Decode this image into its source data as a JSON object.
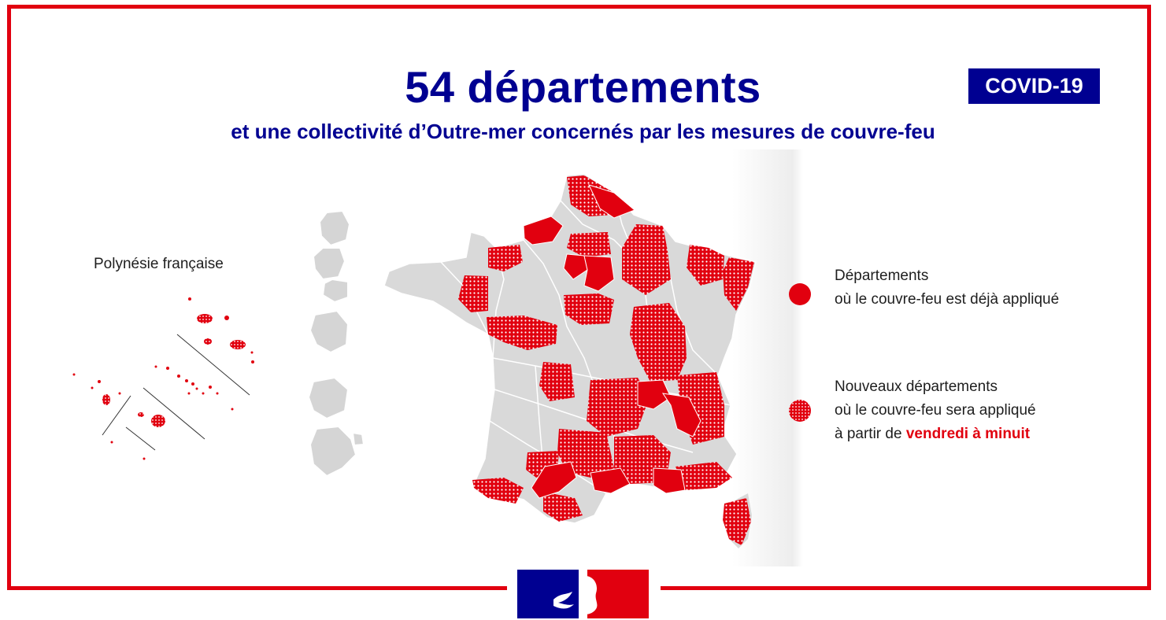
{
  "header": {
    "title": "54 départements",
    "subtitle": "et une collectivité d’Outre-mer concernés par les mesures de couvre-feu",
    "badge": "COVID-19"
  },
  "polynesie": {
    "label": "Polynésie française"
  },
  "legend": {
    "existing": {
      "line1": "Départements",
      "line2": "où le couvre-feu est déjà appliqué",
      "color": "#e1000f",
      "icon": "solid-red-dot"
    },
    "new": {
      "line1": "Nouveaux départements",
      "line2": "où le couvre-feu sera appliqué",
      "line3_prefix": "à partir de ",
      "line3_highlight": "vendredi à minuit",
      "color": "#e1000f",
      "icon": "dotted-red-dot"
    }
  },
  "colors": {
    "brand_red": "#e1000f",
    "brand_blue": "#000091",
    "map_grey": "#d9d9d9"
  },
  "logo": {
    "name": "marianne-logo"
  }
}
